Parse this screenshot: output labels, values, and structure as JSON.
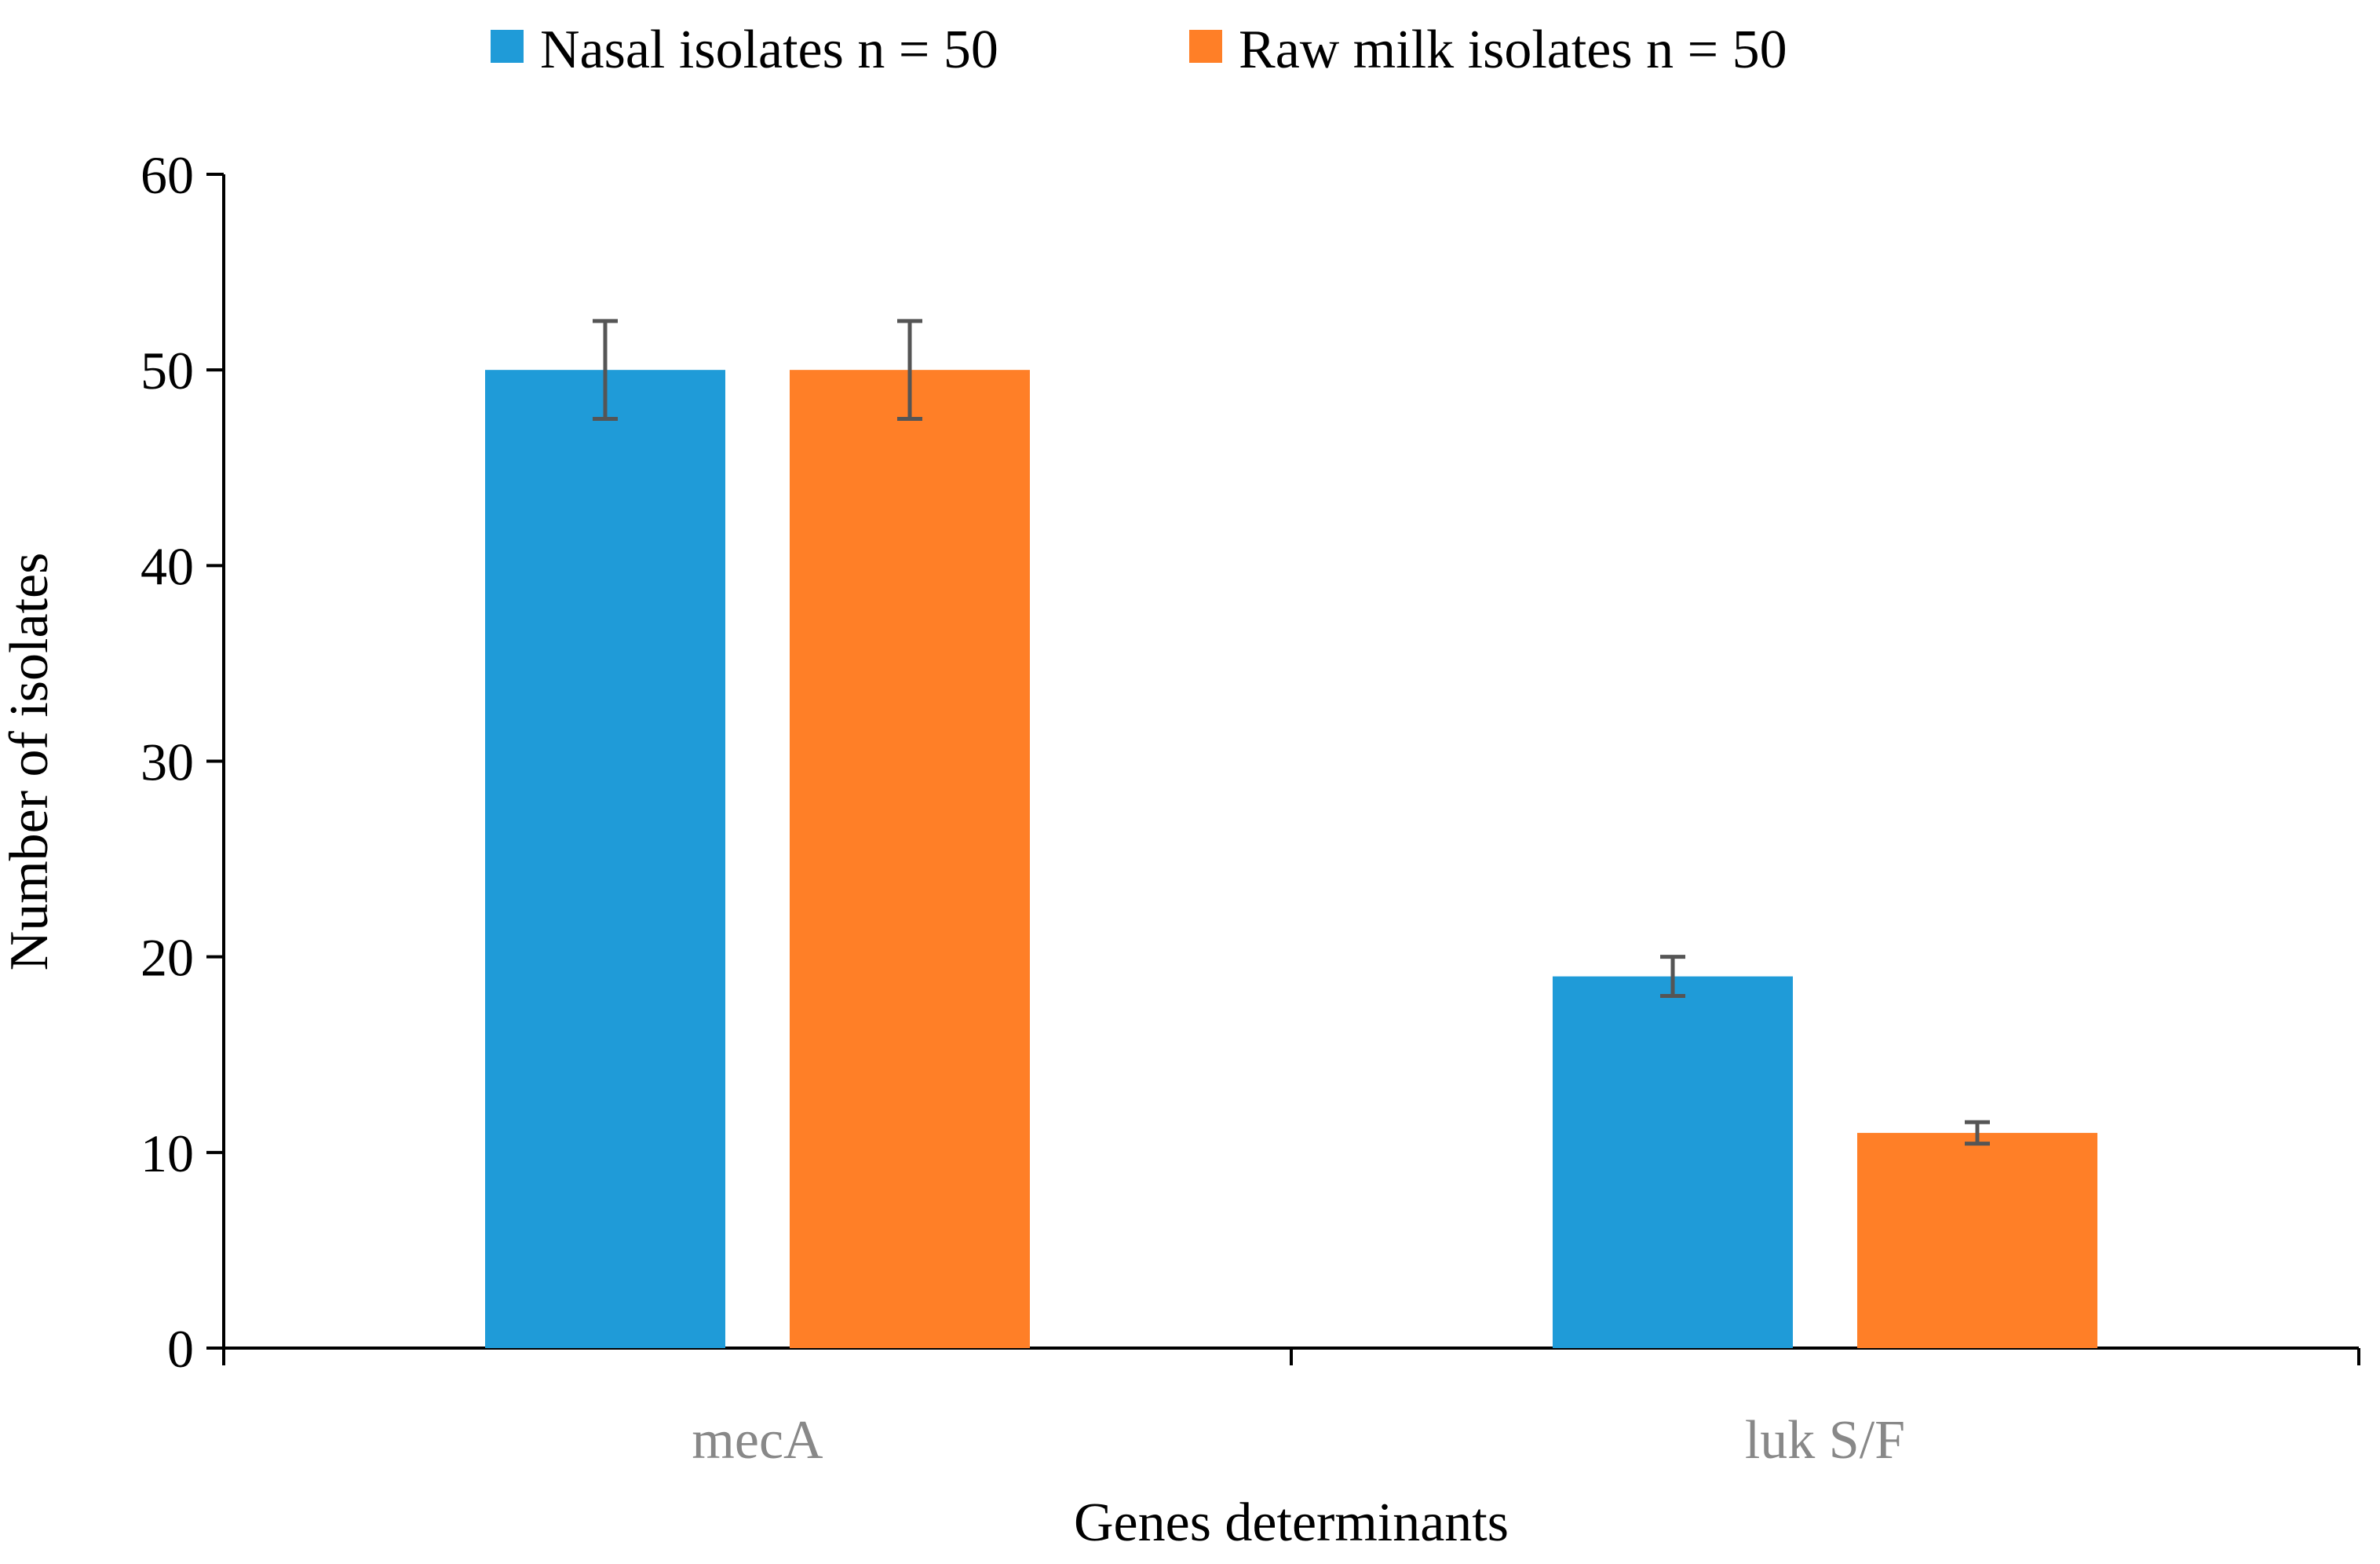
{
  "chart_data": {
    "type": "bar",
    "title": "",
    "xlabel": "Genes determinants",
    "ylabel": "Number of isolates",
    "categories": [
      "mecA",
      "luk S/F"
    ],
    "series": [
      {
        "name": "Nasal isolates n = 50",
        "color": "#1F9BD8",
        "values": [
          50,
          19
        ],
        "errors": [
          2.5,
          1
        ]
      },
      {
        "name": "Raw milk isolates n = 50",
        "color": "#FF7F27",
        "values": [
          50,
          11
        ],
        "errors": [
          2.5,
          0.55
        ]
      }
    ],
    "ylim": [
      0,
      60
    ],
    "yticks": [
      "0",
      "10",
      "20",
      "30",
      "40",
      "50",
      "60"
    ],
    "legend_position": "top-center",
    "grid": false
  },
  "colors": {
    "axis": "#000000",
    "tick_label": "#000000",
    "category_label": "#888888",
    "error_bar": "#555555"
  }
}
